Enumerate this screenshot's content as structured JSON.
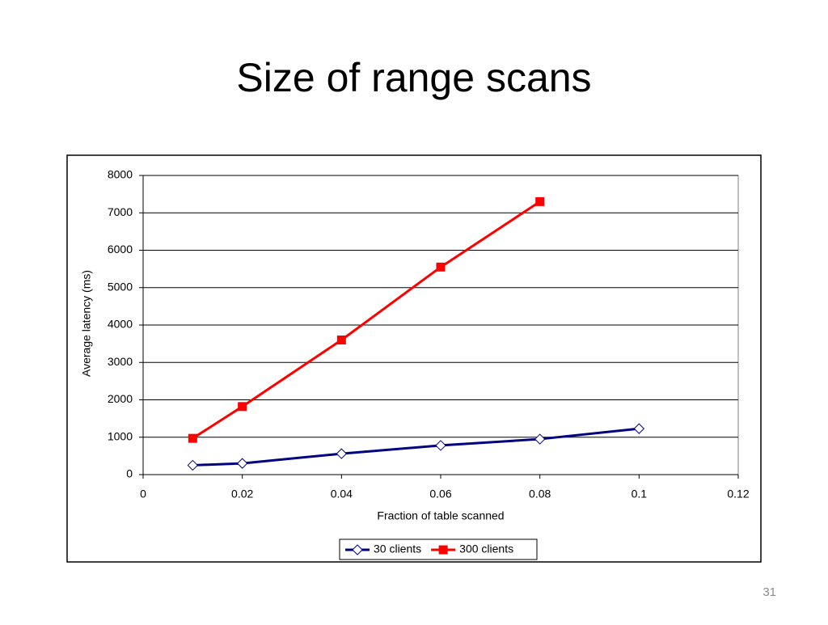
{
  "slide": {
    "title": "Size of range scans",
    "page_number": "31"
  },
  "chart_data": {
    "type": "line",
    "x_label": "Fraction of table scanned",
    "y_label": "Average latency (ms)",
    "x": [
      0.01,
      0.02,
      0.04,
      0.06,
      0.08,
      0.1
    ],
    "series": [
      {
        "name": "30 clients",
        "color": "#000080",
        "marker": "diamond",
        "values": [
          250,
          300,
          560,
          780,
          950,
          1230
        ]
      },
      {
        "name": "300 clients",
        "color": "#ff0000",
        "marker": "square",
        "values": [
          970,
          1820,
          3600,
          5550,
          7300,
          null
        ]
      }
    ],
    "xlim": [
      0,
      0.12
    ],
    "xticks": [
      0,
      0.02,
      0.04,
      0.06,
      0.08,
      0.1,
      0.12
    ],
    "ylim": [
      0,
      8000
    ],
    "yticks": [
      0,
      1000,
      2000,
      3000,
      4000,
      5000,
      6000,
      7000,
      8000
    ],
    "grid": true,
    "legend": "bottom"
  }
}
